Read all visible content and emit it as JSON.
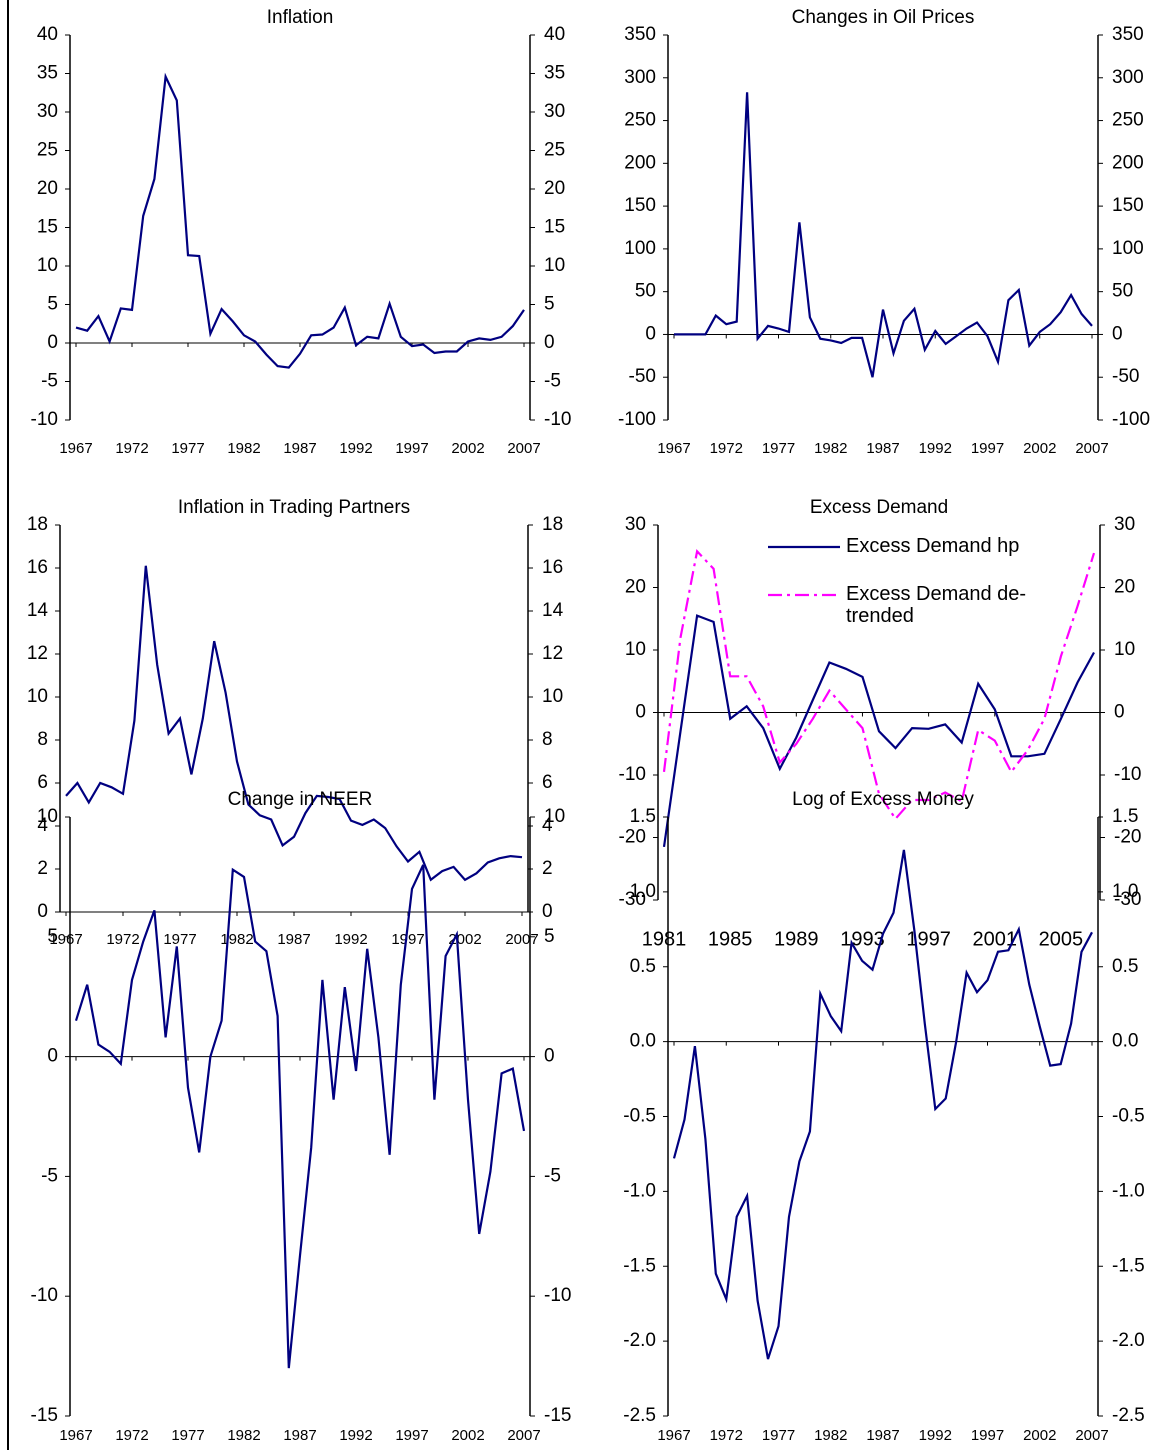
{
  "chart_data": [
    {
      "type": "line",
      "title": "Inflation",
      "x": [
        1967,
        1968,
        1969,
        1970,
        1971,
        1972,
        1973,
        1974,
        1975,
        1976,
        1977,
        1978,
        1979,
        1980,
        1981,
        1982,
        1983,
        1984,
        1985,
        1986,
        1987,
        1988,
        1989,
        1990,
        1991,
        1992,
        1993,
        1994,
        1995,
        1996,
        1997,
        1998,
        1999,
        2000,
        2001,
        2002,
        2003,
        2004,
        2005,
        2006,
        2007
      ],
      "values": [
        2.0,
        1.6,
        3.5,
        0.2,
        4.5,
        4.3,
        16.5,
        21.3,
        34.6,
        31.5,
        11.4,
        11.3,
        1.2,
        4.4,
        2.8,
        1.0,
        0.2,
        -1.5,
        -3.0,
        -3.2,
        -1.4,
        1.0,
        1.1,
        2.0,
        4.6,
        -0.3,
        0.8,
        0.6,
        5.1,
        0.8,
        -0.4,
        -0.2,
        -1.3,
        -1.1,
        -1.1,
        0.2,
        0.6,
        0.4,
        0.8,
        2.2,
        4.3
      ],
      "color": "#000080",
      "xlim": [
        1967,
        2007
      ],
      "xticks": [
        1967,
        1972,
        1977,
        1982,
        1987,
        1992,
        1997,
        2002,
        2007
      ],
      "ylim": [
        -10,
        40
      ],
      "yticks": [
        -10,
        -5,
        0,
        5,
        10,
        15,
        20,
        25,
        30,
        35,
        40
      ]
    },
    {
      "type": "line",
      "title": "Changes in Oil Prices",
      "x": [
        1967,
        1968,
        1969,
        1970,
        1971,
        1972,
        1973,
        1974,
        1975,
        1976,
        1977,
        1978,
        1979,
        1980,
        1981,
        1982,
        1983,
        1984,
        1985,
        1986,
        1987,
        1988,
        1989,
        1990,
        1991,
        1992,
        1993,
        1994,
        1995,
        1996,
        1997,
        1998,
        1999,
        2000,
        2001,
        2002,
        2003,
        2004,
        2005,
        2006,
        2007
      ],
      "values": [
        0,
        0,
        0,
        0,
        22,
        12,
        15,
        283,
        -5,
        10,
        7,
        3,
        131,
        20,
        -5,
        -7,
        -10,
        -4,
        -4,
        -50,
        29,
        -22,
        16,
        30,
        -18,
        4,
        -11,
        -2,
        7,
        14,
        -2,
        -32,
        40,
        52,
        -13,
        3,
        12,
        26,
        46,
        24,
        10
      ],
      "color": "#000080",
      "xlim": [
        1967,
        2007
      ],
      "xticks": [
        1967,
        1972,
        1977,
        1982,
        1987,
        1992,
        1997,
        2002,
        2007
      ],
      "ylim": [
        -100,
        350
      ],
      "yticks": [
        -100,
        -50,
        0,
        50,
        100,
        150,
        200,
        250,
        300,
        350
      ]
    },
    {
      "type": "line",
      "title": "Inflation in Trading Partners",
      "x": [
        1967,
        1968,
        1969,
        1970,
        1971,
        1972,
        1973,
        1974,
        1975,
        1976,
        1977,
        1978,
        1979,
        1980,
        1981,
        1982,
        1983,
        1984,
        1985,
        1986,
        1987,
        1988,
        1989,
        1990,
        1991,
        1992,
        1993,
        1994,
        1995,
        1996,
        1997,
        1998,
        1999,
        2000,
        2001,
        2002,
        2003,
        2004,
        2005,
        2006,
        2007
      ],
      "values": [
        5.4,
        6.0,
        5.1,
        6.0,
        5.8,
        5.5,
        8.9,
        16.1,
        11.5,
        8.3,
        9.0,
        6.4,
        9.0,
        12.6,
        10.2,
        7.0,
        5.0,
        4.5,
        4.3,
        3.1,
        3.5,
        4.6,
        5.4,
        5.35,
        5.25,
        4.25,
        4.05,
        4.3,
        3.9,
        3.05,
        2.35,
        2.8,
        1.5,
        1.9,
        2.1,
        1.5,
        1.8,
        2.3,
        2.5,
        2.6,
        2.55
      ],
      "color": "#000080",
      "xlim": [
        1967,
        2007
      ],
      "xticks": [
        1967,
        1972,
        1977,
        1982,
        1987,
        1992,
        1997,
        2002,
        2007
      ],
      "ylim": [
        0,
        18
      ],
      "yticks": [
        0,
        2,
        4,
        6,
        8,
        10,
        12,
        14,
        16,
        18
      ]
    },
    {
      "type": "line",
      "title": "Excess Demand",
      "x": [
        1981,
        1982,
        1983,
        1984,
        1985,
        1986,
        1987,
        1988,
        1989,
        1990,
        1991,
        1992,
        1993,
        1994,
        1995,
        1996,
        1997,
        1998,
        1999,
        2000,
        2001,
        2002,
        2003,
        2004,
        2005,
        2006,
        2007
      ],
      "series": [
        {
          "name": "Excess Demand hp",
          "color": "#000080",
          "dash": "solid",
          "values": [
            -21.5,
            -3,
            15.5,
            14.5,
            -1,
            1,
            -2.5,
            -9,
            -4,
            2,
            8,
            7,
            5.7,
            -3,
            -5.7,
            -2.5,
            -2.6,
            -1.9,
            -4.8,
            4.6,
            0.5,
            -7,
            -7,
            -6.6,
            -1,
            4.8,
            9.6
          ]
        },
        {
          "name": "Excess Demand de-trended",
          "color": "#ff00ff",
          "dash": "dash-dot",
          "values": [
            -9.5,
            12,
            25.8,
            23,
            5.8,
            5.8,
            1,
            -8,
            -5,
            -1,
            3.5,
            0.5,
            -2.5,
            -13,
            -17,
            -14,
            -14,
            -12.8,
            -14.2,
            -2.8,
            -4.5,
            -9.5,
            -6,
            -1,
            9,
            17,
            25.5
          ]
        }
      ],
      "legend": "top",
      "xlim": [
        1981,
        2007
      ],
      "xticks": [
        1981,
        1985,
        1989,
        1993,
        1997,
        2001,
        2005
      ],
      "ylim": [
        -30,
        30
      ],
      "yticks": [
        -30,
        -20,
        -10,
        0,
        10,
        20,
        30
      ]
    },
    {
      "type": "line",
      "title": "Change in NEER",
      "x": [
        1967,
        1968,
        1969,
        1970,
        1971,
        1972,
        1973,
        1974,
        1975,
        1976,
        1977,
        1978,
        1979,
        1980,
        1981,
        1982,
        1983,
        1984,
        1985,
        1986,
        1987,
        1988,
        1989,
        1990,
        1991,
        1992,
        1993,
        1994,
        1995,
        1996,
        1997,
        1998,
        1999,
        2000,
        2001,
        2002,
        2003,
        2004,
        2005,
        2006,
        2007
      ],
      "values": [
        1.5,
        3.0,
        0.5,
        0.2,
        -0.3,
        3.2,
        4.8,
        6.1,
        0.8,
        4.6,
        -1.3,
        -4.0,
        0.0,
        1.5,
        7.8,
        7.5,
        4.8,
        4.4,
        1.7,
        -13,
        -8.3,
        -3.8,
        3.2,
        -1.8,
        2.9,
        -0.6,
        4.5,
        0.8,
        -4.1,
        3.0,
        7.0,
        8.0,
        -1.8,
        4.2,
        5.1,
        -1.8,
        -7.4,
        -4.8,
        -0.7,
        -0.5,
        -3.1
      ],
      "color": "#000080",
      "xlim": [
        1967,
        2007
      ],
      "xticks": [
        1967,
        1972,
        1977,
        1982,
        1987,
        1992,
        1997,
        2002,
        2007
      ],
      "ylim": [
        -15,
        10
      ],
      "yticks": [
        -15,
        -10,
        -5,
        0,
        5,
        10
      ]
    },
    {
      "type": "line",
      "title": "Log of Excess Money",
      "x": [
        1967,
        1968,
        1969,
        1970,
        1971,
        1972,
        1973,
        1974,
        1975,
        1976,
        1977,
        1978,
        1979,
        1980,
        1981,
        1982,
        1983,
        1984,
        1985,
        1986,
        1987,
        1988,
        1989,
        1990,
        1991,
        1992,
        1993,
        1994,
        1995,
        1996,
        1997,
        1998,
        1999,
        2000,
        2001,
        2002,
        2003,
        2004,
        2005,
        2006,
        2007
      ],
      "values": [
        -0.78,
        -0.52,
        -0.03,
        -0.65,
        -1.55,
        -1.72,
        -1.17,
        -1.03,
        -1.73,
        -2.12,
        -1.9,
        -1.17,
        -0.8,
        -0.6,
        0.32,
        0.17,
        0.07,
        0.66,
        0.54,
        0.48,
        0.72,
        0.86,
        1.28,
        0.74,
        0.12,
        -0.45,
        -0.38,
        0.0,
        0.46,
        0.33,
        0.41,
        0.6,
        0.61,
        0.75,
        0.38,
        0.1,
        -0.16,
        -0.15,
        0.12,
        0.6,
        0.73
      ],
      "color": "#000080",
      "xlim": [
        1967,
        2007
      ],
      "xticks": [
        1967,
        1972,
        1977,
        1982,
        1987,
        1992,
        1997,
        2002,
        2007
      ],
      "ylim": [
        -2.5,
        1.5
      ],
      "yticks": [
        -2.5,
        {
          "value": -2,
          "label": "-2.0"
        },
        -1.5,
        {
          "value": -1,
          "label": "-1.0"
        },
        -0.5,
        {
          "value": 0,
          "label": "0.0"
        },
        0.5,
        {
          "value": 1,
          "label": "1.0"
        },
        1.5
      ]
    }
  ]
}
